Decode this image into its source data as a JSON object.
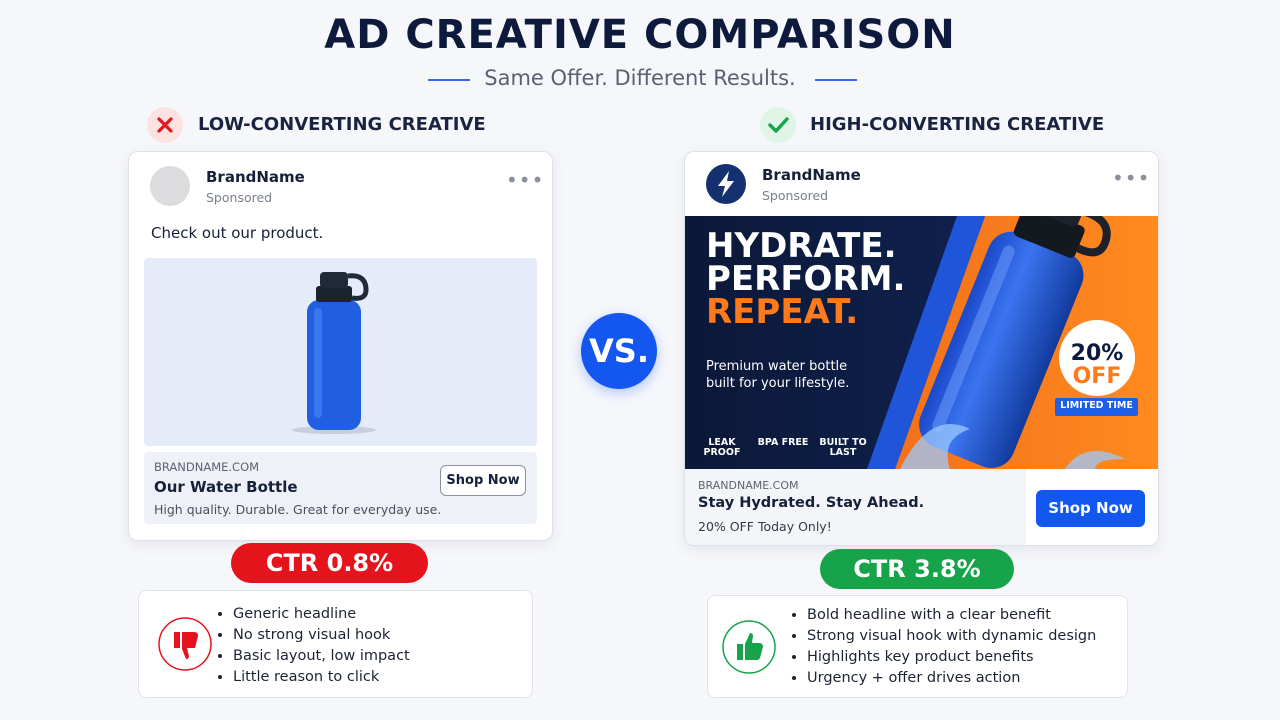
{
  "header": {
    "title": "AD CREATIVE COMPARISON",
    "subtitle": "Same Offer. Different Results."
  },
  "vs": "VS.",
  "low": {
    "label": "LOW-CONVERTING CREATIVE",
    "ad": {
      "brand": "BrandName",
      "sponsored": "Sponsored",
      "text": "Check out our product.",
      "domain": "BRANDNAME.COM",
      "headline": "Our Water Bottle",
      "description": "High quality. Durable. Great for everyday use.",
      "cta": "Shop Now"
    },
    "ctr": "CTR 0.8%",
    "notes": [
      "Generic headline",
      "No strong visual hook",
      "Basic layout, low impact",
      "Little reason to click"
    ]
  },
  "high": {
    "label": "HIGH-CONVERTING CREATIVE",
    "ad": {
      "brand": "BrandName",
      "sponsored": "Sponsored",
      "image": {
        "headline": [
          "HYDRATE.",
          "PERFORM.",
          "REPEAT."
        ],
        "tagline": "Premium water bottle built for your lifestyle.",
        "features": [
          "LEAK PROOF",
          "BPA FREE",
          "BUILT TO LAST"
        ],
        "badge": {
          "discount": "20%",
          "off": "OFF",
          "note": "LIMITED TIME"
        }
      },
      "domain": "BRANDNAME.COM",
      "headline": "Stay Hydrated. Stay Ahead.",
      "description": "20% OFF Today Only!",
      "cta": "Shop Now"
    },
    "ctr": "CTR 3.8%",
    "notes": [
      "Bold headline with a clear benefit",
      "Strong visual hook with dynamic design",
      "Highlights key product benefits",
      "Urgency + offer drives action"
    ]
  }
}
